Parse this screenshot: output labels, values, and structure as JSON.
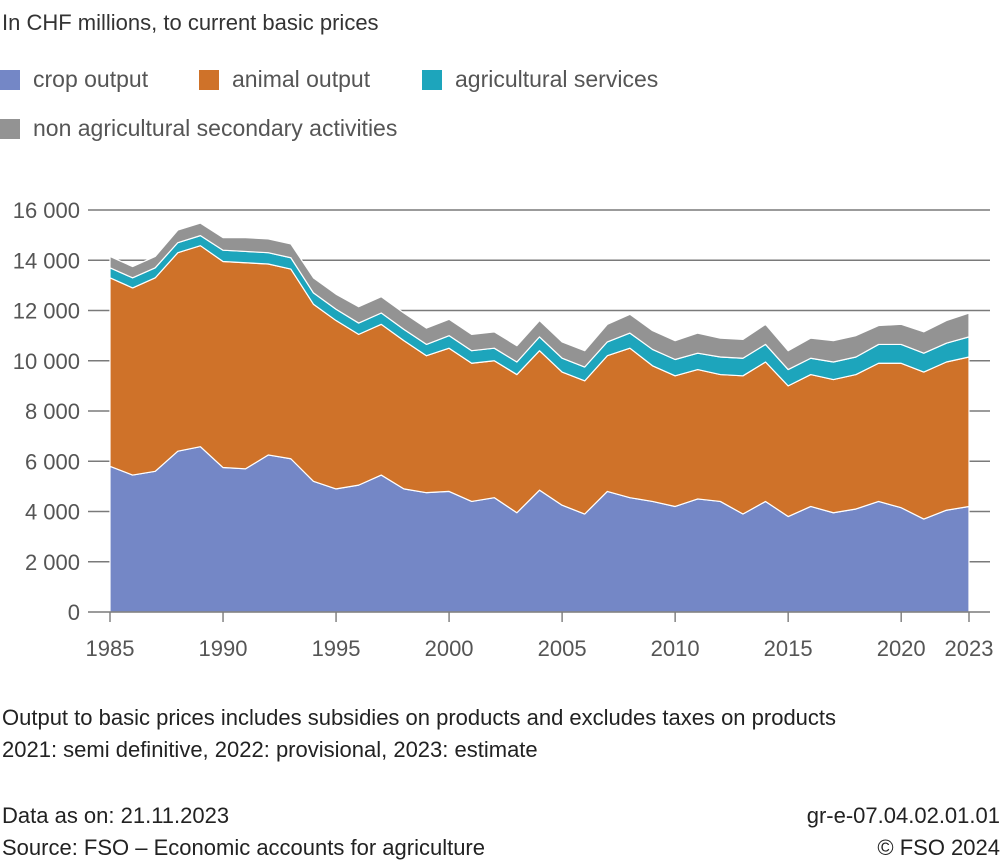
{
  "header": {
    "subtitle": "In CHF millions, to current basic prices"
  },
  "chart_data": {
    "type": "area",
    "stacked": true,
    "title": "",
    "ylabel": "In CHF millions, to current basic prices",
    "xlabel": "",
    "ylim": [
      0,
      16000
    ],
    "yticks": [
      0,
      2000,
      4000,
      6000,
      8000,
      10000,
      12000,
      14000,
      16000
    ],
    "ytick_labels": [
      "0",
      "2 000",
      "4 000",
      "6 000",
      "8 000",
      "10 000",
      "12 000",
      "14 000",
      "16 000"
    ],
    "xticks": [
      1985,
      1990,
      1995,
      2000,
      2005,
      2010,
      2015,
      2020,
      2023
    ],
    "grid": "horizontal",
    "legend_position": "top-left",
    "x": [
      1985,
      1986,
      1987,
      1988,
      1989,
      1990,
      1991,
      1992,
      1993,
      1994,
      1995,
      1996,
      1997,
      1998,
      1999,
      2000,
      2001,
      2002,
      2003,
      2004,
      2005,
      2006,
      2007,
      2008,
      2009,
      2010,
      2011,
      2012,
      2013,
      2014,
      2015,
      2016,
      2017,
      2018,
      2019,
      2020,
      2021,
      2022,
      2023
    ],
    "series": [
      {
        "name": "crop output",
        "color": "#7487c6",
        "values": [
          5800,
          5450,
          5600,
          6400,
          6580,
          5750,
          5700,
          6250,
          6100,
          5200,
          4900,
          5050,
          5450,
          4900,
          4750,
          4800,
          4400,
          4550,
          3950,
          4850,
          4250,
          3900,
          4800,
          4550,
          4400,
          4200,
          4500,
          4400,
          3900,
          4400,
          3800,
          4200,
          3950,
          4100,
          4400,
          4150,
          3700,
          4050,
          4200
        ]
      },
      {
        "name": "animal output",
        "color": "#cf7229",
        "values": [
          7500,
          7450,
          7700,
          7900,
          8000,
          8200,
          8200,
          7600,
          7550,
          7050,
          6700,
          6000,
          6000,
          5900,
          5450,
          5700,
          5500,
          5450,
          5500,
          5550,
          5300,
          5300,
          5400,
          5950,
          5400,
          5200,
          5150,
          5050,
          5500,
          5550,
          5200,
          5250,
          5300,
          5350,
          5500,
          5750,
          5850,
          5900,
          5950
        ]
      },
      {
        "name": "agricultural services",
        "color": "#1da5bc",
        "values": [
          400,
          400,
          400,
          400,
          400,
          450,
          450,
          450,
          450,
          450,
          450,
          450,
          450,
          450,
          450,
          500,
          500,
          500,
          500,
          550,
          550,
          550,
          550,
          600,
          650,
          650,
          650,
          700,
          700,
          700,
          650,
          650,
          700,
          700,
          750,
          750,
          750,
          750,
          800
        ]
      },
      {
        "name": "non agricultural secondary activities",
        "color": "#939393",
        "values": [
          450,
          450,
          450,
          500,
          500,
          500,
          550,
          550,
          550,
          600,
          600,
          650,
          650,
          650,
          650,
          650,
          650,
          650,
          650,
          650,
          650,
          650,
          700,
          750,
          750,
          750,
          800,
          750,
          750,
          800,
          750,
          800,
          850,
          850,
          750,
          800,
          850,
          900,
          950
        ]
      }
    ]
  },
  "notes": {
    "line1": "Output to basic prices includes subsidies on products and excludes taxes on products",
    "line2": "2021: semi definitive, 2022: provisional, 2023: estimate"
  },
  "footer": {
    "data_as_on": "Data as on: 21.11.2023",
    "source": "Source: FSO – Economic accounts for agriculture",
    "code": "gr-e-07.04.02.01.01",
    "copyright": "© FSO 2024"
  }
}
